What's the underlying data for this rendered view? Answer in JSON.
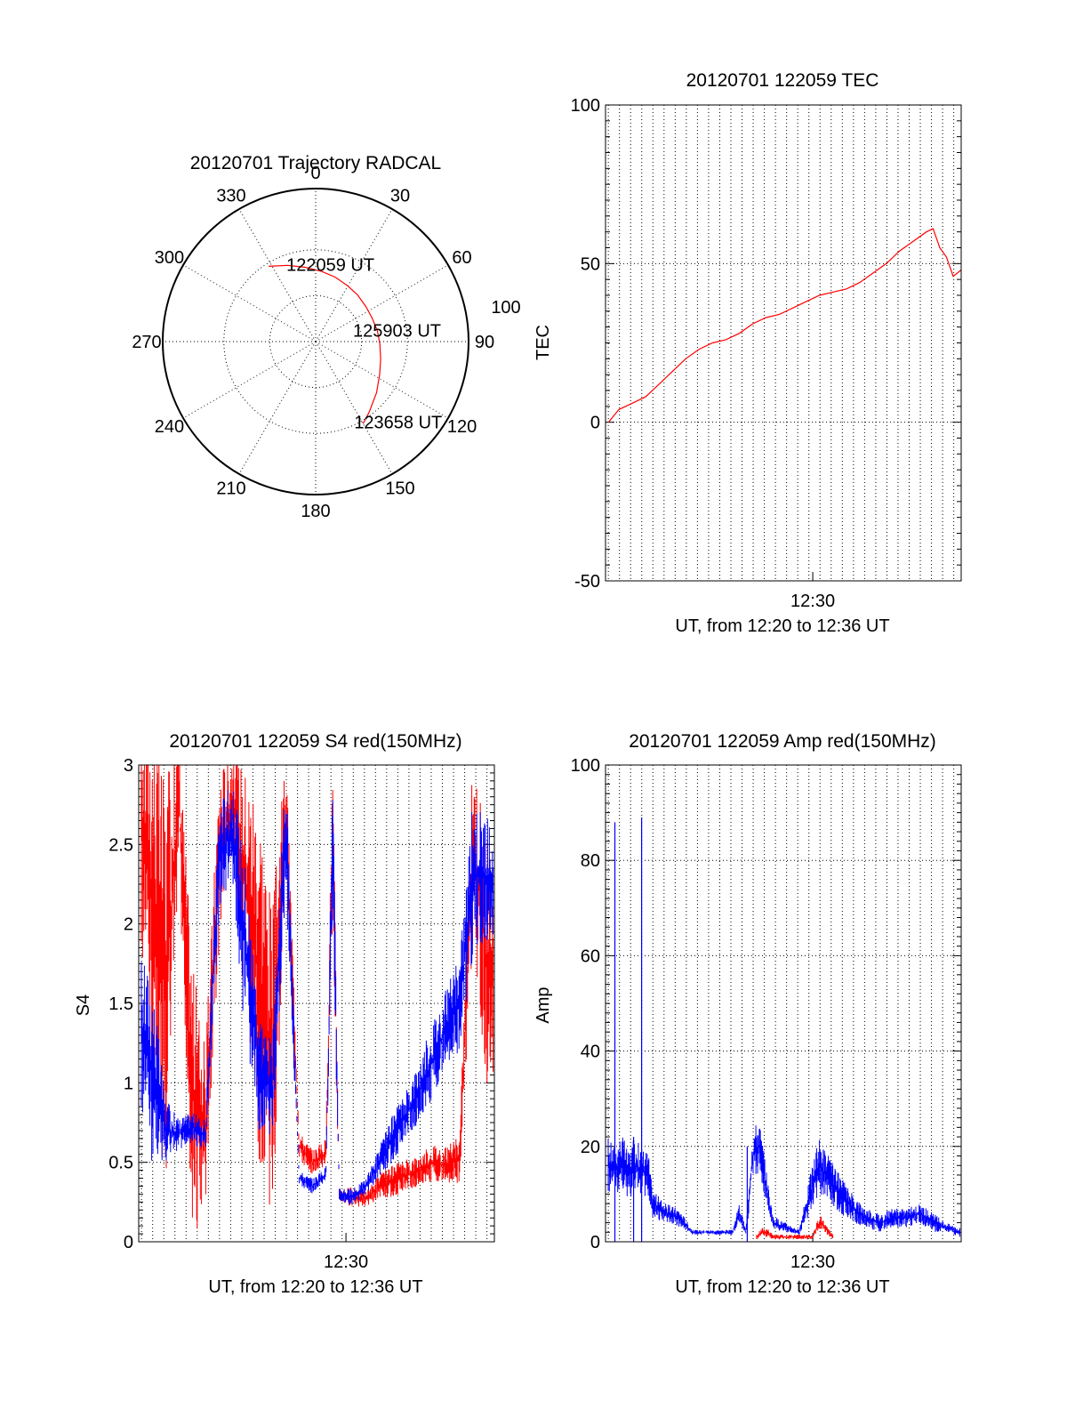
{
  "chart_data": [
    {
      "type": "polar",
      "title": "20120701 Trajectory RADCAL",
      "angle_labels": [
        "0",
        "30",
        "60",
        "90",
        "120",
        "150",
        "180",
        "210",
        "240",
        "270",
        "300",
        "330"
      ],
      "rings": [
        30,
        60,
        100
      ],
      "ring_label": "100",
      "trajectory_color": "#ff0000",
      "trajectory": {
        "azimuth": [
          328,
          340,
          352,
          5,
          17,
          30,
          42,
          55,
          67,
          80,
          92,
          105,
          117,
          130,
          143,
          150
        ],
        "zenith": [
          58,
          53,
          49,
          46,
          44,
          42,
          41,
          40,
          40,
          41,
          42,
          44,
          47,
          52,
          58,
          62
        ]
      },
      "annotations": [
        {
          "text": "122059 UT",
          "azimuth": 328,
          "zenith": 58
        },
        {
          "text": "125903 UT",
          "azimuth": 77,
          "zenith": 40
        },
        {
          "text": "123658 UT",
          "azimuth": 150,
          "zenith": 62
        }
      ]
    },
    {
      "type": "line",
      "title": "20120701 122059 TEC",
      "xlabel": "UT, from 12:20 to 12:36 UT",
      "ylabel": "TEC",
      "x_tick_label": "12:30",
      "xlim": [
        12.345,
        12.611
      ],
      "x_tick": 12.5,
      "ylim": [
        -50,
        100
      ],
      "y_ticks": [
        -50,
        0,
        50,
        100
      ],
      "grid": true,
      "series": [
        {
          "color": "#ff0000",
          "x": [
            12.3472,
            12.355,
            12.365,
            12.375,
            12.385,
            12.395,
            12.405,
            12.415,
            12.425,
            12.435,
            12.445,
            12.455,
            12.465,
            12.475,
            12.485,
            12.495,
            12.505,
            12.515,
            12.525,
            12.535,
            12.545,
            12.555,
            12.565,
            12.575,
            12.585,
            12.59,
            12.595,
            12.6,
            12.605,
            12.611
          ],
          "y": [
            0,
            4,
            6,
            8,
            12,
            16,
            20,
            23,
            25,
            26,
            28,
            31,
            33,
            34,
            36,
            38,
            40,
            41,
            42,
            44,
            47,
            50,
            54,
            57,
            60,
            61,
            55,
            52,
            46,
            48
          ]
        }
      ]
    },
    {
      "type": "line",
      "title": "20120701 122059 S4 red(150MHz)",
      "xlabel": "UT, from 12:20 to 12:36 UT",
      "ylabel": "S4",
      "x_tick_label": "12:30",
      "xlim": [
        12.345,
        12.611
      ],
      "x_tick": 12.5,
      "ylim": [
        0,
        3
      ],
      "y_ticks": [
        0,
        0.5,
        1,
        1.5,
        2,
        2.5,
        3
      ],
      "grid": true,
      "series": [
        {
          "color": "#ff0000",
          "x": [
            12.347,
            12.355,
            12.365,
            12.375,
            12.385,
            12.395,
            12.405,
            12.415,
            12.425,
            12.435,
            12.445,
            12.455,
            12.465,
            12.475,
            12.485,
            12.49,
            12.495,
            12.505,
            12.515,
            12.525,
            12.535,
            12.545,
            12.555,
            12.565,
            12.575,
            12.585,
            12.595,
            12.605,
            12.61
          ],
          "y": [
            2.6,
            2.2,
            1.6,
            2.8,
            0.9,
            0.7,
            2.4,
            2.8,
            2.2,
            1.7,
            1.1,
            2.7,
            0.6,
            0.5,
            0.55,
            2.5,
            0.3,
            0.28,
            0.27,
            0.35,
            0.38,
            0.42,
            0.45,
            0.5,
            0.48,
            0.52,
            2.5,
            1.8,
            1.6
          ],
          "spread": [
            0.8,
            1.2,
            1.3,
            0.4,
            0.9,
            0.5,
            0.6,
            0.3,
            0.8,
            1.2,
            1.0,
            0.4,
            0.1,
            0.08,
            0.1,
            0.6,
            0.05,
            0.06,
            0.05,
            0.08,
            0.1,
            0.1,
            0.1,
            0.12,
            0.12,
            0.15,
            0.6,
            0.8,
            0.8
          ]
        },
        {
          "color": "#0000ff",
          "x": [
            12.347,
            12.355,
            12.365,
            12.375,
            12.385,
            12.395,
            12.405,
            12.415,
            12.425,
            12.435,
            12.445,
            12.455,
            12.465,
            12.475,
            12.485,
            12.49,
            12.495,
            12.505,
            12.515,
            12.525,
            12.535,
            12.545,
            12.555,
            12.565,
            12.575,
            12.585,
            12.595,
            12.605,
            12.61
          ],
          "y": [
            1.3,
            1.1,
            0.7,
            0.68,
            0.72,
            0.66,
            2.4,
            2.6,
            1.8,
            1.1,
            0.95,
            2.6,
            0.4,
            0.35,
            0.42,
            2.5,
            0.3,
            0.28,
            0.35,
            0.5,
            0.65,
            0.8,
            0.95,
            1.15,
            1.35,
            1.5,
            2.3,
            2.3,
            2.2
          ],
          "spread": [
            0.5,
            0.6,
            0.2,
            0.1,
            0.1,
            0.1,
            0.4,
            0.3,
            0.6,
            0.4,
            0.3,
            0.4,
            0.05,
            0.05,
            0.05,
            0.5,
            0.05,
            0.05,
            0.05,
            0.1,
            0.15,
            0.15,
            0.2,
            0.25,
            0.25,
            0.3,
            0.5,
            0.4,
            0.4
          ]
        }
      ]
    },
    {
      "type": "line",
      "title": "20120701 122059 Amp red(150MHz)",
      "xlabel": "UT, from 12:20 to 12:36 UT",
      "ylabel": "Amp",
      "x_tick_label": "12:30",
      "xlim": [
        12.345,
        12.611
      ],
      "x_tick": 12.5,
      "ylim": [
        0,
        100
      ],
      "y_ticks": [
        0,
        20,
        40,
        60,
        80,
        100
      ],
      "grid": true,
      "series": [
        {
          "color": "#0000ff",
          "x": [
            12.347,
            12.352,
            12.357,
            12.362,
            12.367,
            12.372,
            12.377,
            12.38,
            12.39,
            12.4,
            12.41,
            12.42,
            12.43,
            12.44,
            12.445,
            12.45,
            12.455,
            12.46,
            12.47,
            12.48,
            12.49,
            12.5,
            12.505,
            12.51,
            12.52,
            12.53,
            12.54,
            12.55,
            12.56,
            12.57,
            12.58,
            12.59,
            12.6,
            12.61
          ],
          "y": [
            16,
            15,
            17,
            14,
            16,
            15,
            14,
            8,
            6,
            5,
            2,
            2,
            2,
            2,
            6,
            2,
            18,
            20,
            4,
            3,
            2,
            12,
            16,
            14,
            10,
            7,
            5,
            4,
            5,
            5,
            6,
            4,
            3,
            2
          ],
          "spread": [
            6,
            5,
            6,
            5,
            6,
            5,
            5,
            3,
            2,
            2,
            0.5,
            0.5,
            0.5,
            0.5,
            2,
            0.5,
            6,
            6,
            1.5,
            1,
            0.5,
            5,
            6,
            5,
            4,
            3,
            2,
            2,
            2,
            2,
            2,
            2,
            1,
            1
          ],
          "spikes": [
            {
              "x": 12.352,
              "y": 88
            },
            {
              "x": 12.372,
              "y": 89
            },
            {
              "x": 12.366,
              "y": 22
            },
            {
              "x": 12.451,
              "y": 20
            }
          ]
        },
        {
          "color": "#ff0000",
          "x": [
            12.458,
            12.462,
            12.466,
            12.47,
            12.5,
            12.503,
            12.506,
            12.509,
            12.512,
            12.515
          ],
          "y": [
            1,
            2,
            2,
            1,
            1,
            3,
            4,
            3,
            2,
            1
          ],
          "spread": [
            0.5,
            1,
            1,
            0.5,
            0.5,
            1,
            1.5,
            1,
            1,
            0.5
          ]
        }
      ]
    }
  ]
}
